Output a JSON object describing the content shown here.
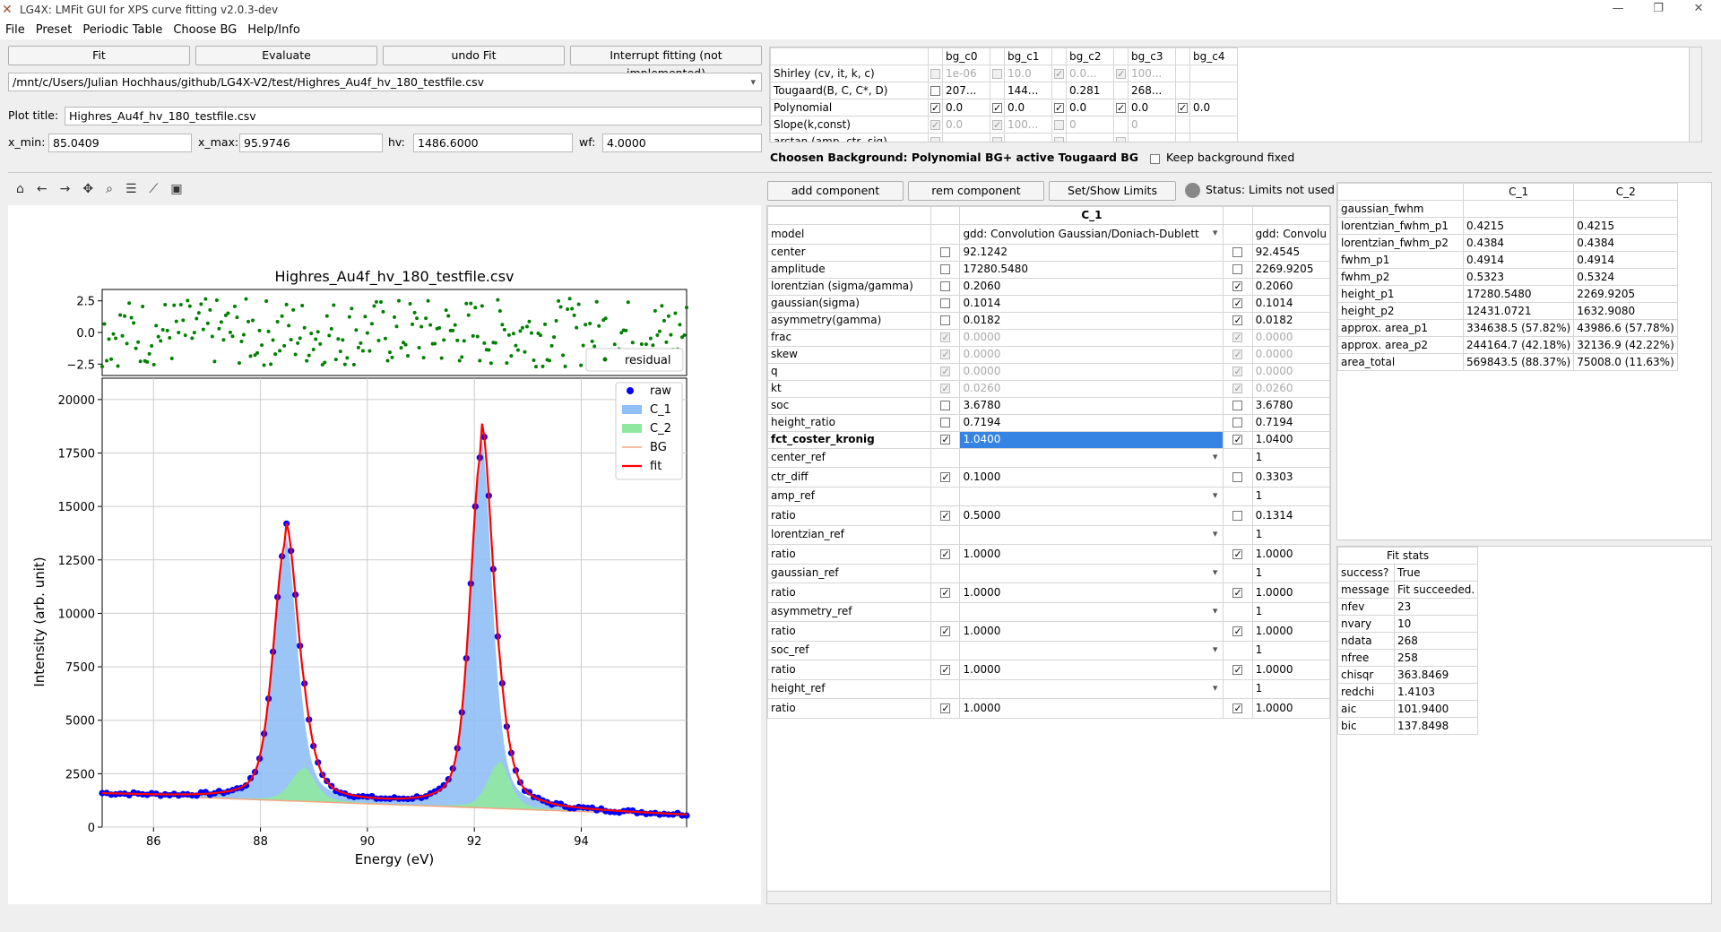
{
  "window": {
    "title": "LG4X: LMFit GUI for XPS curve fitting v2.0.3-dev"
  },
  "menu": [
    "File",
    "Preset",
    "Periodic Table",
    "Choose BG",
    "Help/Info"
  ],
  "toolbar": {
    "fit": "Fit",
    "evaluate": "Evaluate",
    "undo": "undo Fit",
    "interrupt": "Interrupt fitting (not implemented)"
  },
  "file_path": "/mnt/c/Users/Julian Hochhaus/github/LG4X-V2/test/Highres_Au4f_hv_180_testfile.csv",
  "plot_title_label": "Plot title:",
  "plot_title": "Highres_Au4f_hv_180_testfile.csv",
  "range": {
    "xmin_label": "x_min:",
    "xmin": "85.0409",
    "xmax_label": "x_max:",
    "xmax": "95.9746",
    "hv_label": "hv:",
    "hv": "1486.6000",
    "wf_label": "wf:",
    "wf": "4.0000"
  },
  "bg_table": {
    "headers": [
      "bg_c0",
      "bg_c1",
      "bg_c2",
      "bg_c3",
      "bg_c4"
    ],
    "rows": [
      {
        "name": "Shirley (cv, it, k, c)",
        "cells": [
          {
            "cb": "dis",
            "v": "1e-06",
            "g": true
          },
          {
            "cb": "dis",
            "v": "10.0",
            "g": true
          },
          {
            "cb": "dison",
            "v": "0.0...",
            "g": true
          },
          {
            "cb": "dison",
            "v": "100...",
            "g": true
          },
          {
            "cb": "none",
            "v": ""
          }
        ]
      },
      {
        "name": "Tougaard(B, C, C*, D)",
        "cells": [
          {
            "cb": "off",
            "v": "207..."
          },
          {
            "cb": "none",
            "v": "144..."
          },
          {
            "cb": "none",
            "v": "0.281"
          },
          {
            "cb": "none",
            "v": "268..."
          },
          {
            "cb": "none",
            "v": ""
          }
        ]
      },
      {
        "name": "Polynomial",
        "cells": [
          {
            "cb": "on",
            "v": "0.0"
          },
          {
            "cb": "on",
            "v": "0.0"
          },
          {
            "cb": "on",
            "v": "0.0"
          },
          {
            "cb": "on",
            "v": "0.0"
          },
          {
            "cb": "on",
            "v": "0.0"
          }
        ]
      },
      {
        "name": "Slope(k,const)",
        "cells": [
          {
            "cb": "dison",
            "v": "0.0",
            "g": true
          },
          {
            "cb": "dison",
            "v": "100...",
            "g": true
          },
          {
            "cb": "dis",
            "v": "0",
            "g": true
          },
          {
            "cb": "none",
            "v": "0",
            "g": true
          },
          {
            "cb": "none",
            "v": ""
          }
        ]
      },
      {
        "name": "arctan (amp, ctr, sig)",
        "cells": [
          {
            "cb": "dis",
            "v": ""
          },
          {
            "cb": "dis",
            "v": ""
          },
          {
            "cb": "dis",
            "v": ""
          },
          {
            "cb": "dis",
            "v": ""
          },
          {
            "cb": "none",
            "v": ""
          }
        ]
      }
    ]
  },
  "bg_status": "Choosen Background: Polynomial BG+ active Tougaard BG",
  "keep_bg": "Keep background fixed",
  "comp": {
    "add": "add component",
    "rem": "rem component",
    "limits": "Set/Show Limits",
    "status": "Status: Limits not used"
  },
  "comp_table": {
    "header": "C_1",
    "rows": [
      {
        "name": "model",
        "c1": "gdd: Convolution Gaussian/Doniach-Dublett",
        "c2": "gdd: Convolu",
        "combo": true
      },
      {
        "name": "center",
        "cb1": "off",
        "c1": "92.1242",
        "cb2": "off",
        "c2": "92.4545"
      },
      {
        "name": "amplitude",
        "cb1": "off",
        "c1": "17280.5480",
        "cb2": "off",
        "c2": "2269.9205"
      },
      {
        "name": "lorentzian (sigma/gamma)",
        "cb1": "off",
        "c1": "0.2060",
        "cb2": "on",
        "c2": "0.2060"
      },
      {
        "name": "gaussian(sigma)",
        "cb1": "off",
        "c1": "0.1014",
        "cb2": "on",
        "c2": "0.1014"
      },
      {
        "name": "asymmetry(gamma)",
        "cb1": "off",
        "c1": "0.0182",
        "cb2": "on",
        "c2": "0.0182"
      },
      {
        "name": "frac",
        "cb1": "dison",
        "c1": "0.0000",
        "cb2": "dison",
        "c2": "0.0000",
        "g": true
      },
      {
        "name": "skew",
        "cb1": "dison",
        "c1": "0.0000",
        "cb2": "dison",
        "c2": "0.0000",
        "g": true
      },
      {
        "name": "q",
        "cb1": "dison",
        "c1": "0.0000",
        "cb2": "dison",
        "c2": "0.0000",
        "g": true
      },
      {
        "name": "kt",
        "cb1": "dison",
        "c1": "0.0260",
        "cb2": "dison",
        "c2": "0.0260",
        "g": true
      },
      {
        "name": "soc",
        "cb1": "off",
        "c1": "3.6780",
        "cb2": "off",
        "c2": "3.6780"
      },
      {
        "name": "height_ratio",
        "cb1": "off",
        "c1": "0.7194",
        "cb2": "off",
        "c2": "0.7194"
      },
      {
        "name": "fct_coster_kronig",
        "cb1": "on",
        "c1": "1.0400",
        "cb2": "on",
        "c2": "1.0400",
        "bold": true,
        "sel": true
      },
      {
        "name": "center_ref",
        "c1": "",
        "c2": "1",
        "combo": true
      },
      {
        "name": "ctr_diff",
        "cb1": "on",
        "c1": "0.1000",
        "cb2": "off",
        "c2": "0.3303"
      },
      {
        "name": "amp_ref",
        "c1": "",
        "c2": "1",
        "combo": true
      },
      {
        "name": "ratio",
        "cb1": "on",
        "c1": "0.5000",
        "cb2": "off",
        "c2": "0.1314"
      },
      {
        "name": "lorentzian_ref",
        "c1": "",
        "c2": "1",
        "combo": true
      },
      {
        "name": "ratio",
        "cb1": "on",
        "c1": "1.0000",
        "cb2": "on",
        "c2": "1.0000"
      },
      {
        "name": "gaussian_ref",
        "c1": "",
        "c2": "1",
        "combo": true
      },
      {
        "name": "ratio",
        "cb1": "on",
        "c1": "1.0000",
        "cb2": "on",
        "c2": "1.0000"
      },
      {
        "name": "asymmetry_ref",
        "c1": "",
        "c2": "1",
        "combo": true
      },
      {
        "name": "ratio",
        "cb1": "on",
        "c1": "1.0000",
        "cb2": "on",
        "c2": "1.0000"
      },
      {
        "name": "soc_ref",
        "c1": "",
        "c2": "1",
        "combo": true
      },
      {
        "name": "ratio",
        "cb1": "on",
        "c1": "1.0000",
        "cb2": "on",
        "c2": "1.0000"
      },
      {
        "name": "height_ref",
        "c1": "",
        "c2": "1",
        "combo": true
      },
      {
        "name": "ratio",
        "cb1": "on",
        "c1": "1.0000",
        "cb2": "on",
        "c2": "1.0000"
      }
    ]
  },
  "res_table": {
    "headers": [
      "C_1",
      "C_2"
    ],
    "rows": [
      [
        "gaussian_fwhm",
        "",
        ""
      ],
      [
        "lorentzian_fwhm_p1",
        "0.4215",
        "0.4215"
      ],
      [
        "lorentzian_fwhm_p2",
        "0.4384",
        "0.4384"
      ],
      [
        "fwhm_p1",
        "0.4914",
        "0.4914"
      ],
      [
        "fwhm_p2",
        "0.5323",
        "0.5324"
      ],
      [
        "height_p1",
        "17280.5480",
        "2269.9205"
      ],
      [
        "height_p2",
        "12431.0721",
        "1632.9080"
      ],
      [
        "approx. area_p1",
        "334638.5 (57.82%)",
        "43986.6 (57.78%)"
      ],
      [
        "approx. area_p2",
        "244164.7 (42.18%)",
        "32136.9 (42.22%)"
      ],
      [
        "area_total",
        "569843.5 (88.37%)",
        "75008.0 (11.63%)"
      ]
    ]
  },
  "stats": {
    "header": "Fit stats",
    "rows": [
      [
        "success?",
        "True"
      ],
      [
        "message",
        "Fit succeeded."
      ],
      [
        "nfev",
        "23"
      ],
      [
        "nvary",
        "10"
      ],
      [
        "ndata",
        "268"
      ],
      [
        "nfree",
        "258"
      ],
      [
        "chisqr",
        "363.8469"
      ],
      [
        "redchi",
        "1.4103"
      ],
      [
        "aic",
        "101.9400"
      ],
      [
        "bic",
        "137.8498"
      ]
    ]
  },
  "chart_data": {
    "type": "line",
    "title": "Highres_Au4f_hv_180_testfile.csv",
    "xlabel": "Energy (eV)",
    "ylabel": "Intensity (arb. unit)",
    "xlim": [
      85.04,
      95.97
    ],
    "ylim": [
      0,
      21000
    ],
    "xticks": [
      86,
      88,
      90,
      92,
      94
    ],
    "yticks": [
      0,
      2500,
      5000,
      7500,
      10000,
      12500,
      15000,
      17500,
      20000
    ],
    "residual_yticks": [
      "2.5",
      "0.0",
      "−2.5"
    ],
    "residual_ylim": [
      -3.4,
      3.4
    ],
    "legend": [
      "raw",
      "C_1",
      "C_2",
      "BG",
      "fit"
    ],
    "residual_legend": "residual",
    "colors": {
      "raw": "#0000ff",
      "C_1": "#8fbff5",
      "C_2": "#90e8a0",
      "BG": "#f4a582",
      "fit": "#ff0000",
      "residual": "#008000"
    },
    "peaks": [
      {
        "name": "C_1",
        "center": 92.1242,
        "amplitude": 17280.548,
        "fwhm": 0.49
      },
      {
        "name": "C_1",
        "center": 88.46,
        "amplitude": 12431.07,
        "fwhm": 0.53
      },
      {
        "name": "C_2",
        "center": 92.45,
        "amplitude": 2269.92,
        "fwhm": 0.49
      },
      {
        "name": "C_2",
        "center": 88.79,
        "amplitude": 1632.9,
        "fwhm": 0.53
      }
    ],
    "bg": {
      "start": 1550,
      "end": 550
    }
  }
}
